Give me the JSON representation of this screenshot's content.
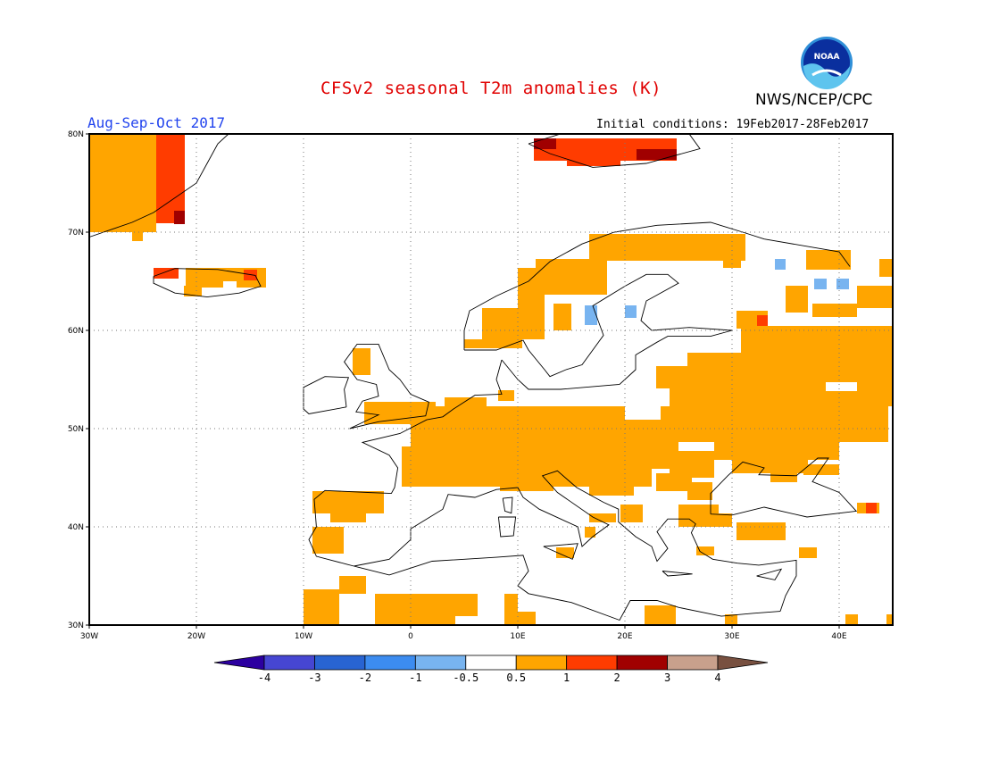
{
  "header": {
    "title": "CFSv2 seasonal T2m anomalies (K)",
    "agency": "NWS/NCEP/CPC",
    "logo_text": "NOAA",
    "season": "Aug-Sep-Oct 2017",
    "initial_conditions": "Initial conditions: 19Feb2017-28Feb2017"
  },
  "map": {
    "lon_range": [
      -30,
      45
    ],
    "lat_range": [
      30,
      80
    ],
    "lat_labels": [
      "80N",
      "70N",
      "60N",
      "50N",
      "40N",
      "30N"
    ],
    "lon_labels": [
      "30W",
      "20W",
      "10W",
      "0",
      "10E",
      "20E",
      "30E",
      "40E"
    ],
    "grid": "dotted every 10 degrees",
    "colors": {
      "warm_0_5_1": "#ffa500",
      "warm_1_2": "#ff3c00",
      "warm_2_3": "#a00000",
      "cool_m1_m0_5": "#78b4f0",
      "cool_m2_m1": "#3c8cf0"
    }
  },
  "colorbar": {
    "labels": [
      "-4",
      "-3",
      "-2",
      "-1",
      "-0.5",
      "0.5",
      "1",
      "2",
      "3",
      "4"
    ],
    "colors": [
      "#2c00a0",
      "#4646d2",
      "#2864d2",
      "#3c8cf0",
      "#78b4f0",
      "#ffffff",
      "#ffa500",
      "#ff3c00",
      "#a00000",
      "#c8a08c",
      "#785040"
    ]
  }
}
